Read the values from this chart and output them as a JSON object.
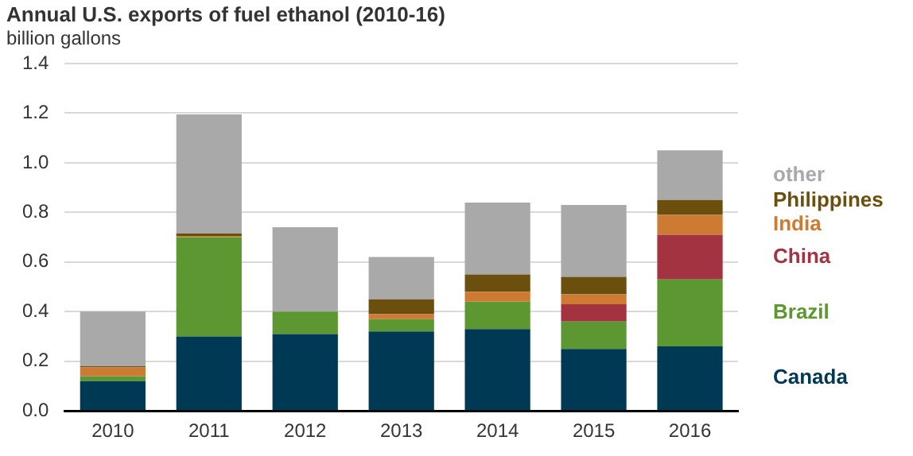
{
  "chart_data": {
    "type": "bar",
    "title": "Annual U.S. exports of fuel ethanol (2010-16)",
    "subtitle": "billion gallons",
    "stacked": true,
    "categories": [
      "2010",
      "2011",
      "2012",
      "2013",
      "2014",
      "2015",
      "2016"
    ],
    "series": [
      {
        "name": "Canada",
        "color": "#003953",
        "values": [
          0.12,
          0.3,
          0.31,
          0.32,
          0.33,
          0.25,
          0.26
        ]
      },
      {
        "name": "Brazil",
        "color": "#5d9732",
        "values": [
          0.02,
          0.4,
          0.09,
          0.05,
          0.11,
          0.11,
          0.27
        ]
      },
      {
        "name": "China",
        "color": "#a33340",
        "values": [
          0,
          0,
          0,
          0,
          0,
          0.07,
          0.18
        ]
      },
      {
        "name": "India",
        "color": "#cd7b32",
        "values": [
          0.035,
          0.005,
          0,
          0.02,
          0.04,
          0.04,
          0.08
        ]
      },
      {
        "name": "Philippines",
        "color": "#6b4f0e",
        "values": [
          0.005,
          0.01,
          0,
          0.06,
          0.07,
          0.07,
          0.06
        ]
      },
      {
        "name": "other",
        "color": "#a9a9a9",
        "values": [
          0.22,
          0.48,
          0.34,
          0.17,
          0.29,
          0.29,
          0.2
        ]
      }
    ],
    "ylim": [
      0,
      1.4
    ],
    "yticks": [
      {
        "value": 0,
        "label": "0.0"
      },
      0.2,
      0.4,
      0.6,
      0.8,
      {
        "value": 1,
        "label": "1.0"
      },
      1.2,
      1.4
    ],
    "grid": "y",
    "legend": "right"
  }
}
